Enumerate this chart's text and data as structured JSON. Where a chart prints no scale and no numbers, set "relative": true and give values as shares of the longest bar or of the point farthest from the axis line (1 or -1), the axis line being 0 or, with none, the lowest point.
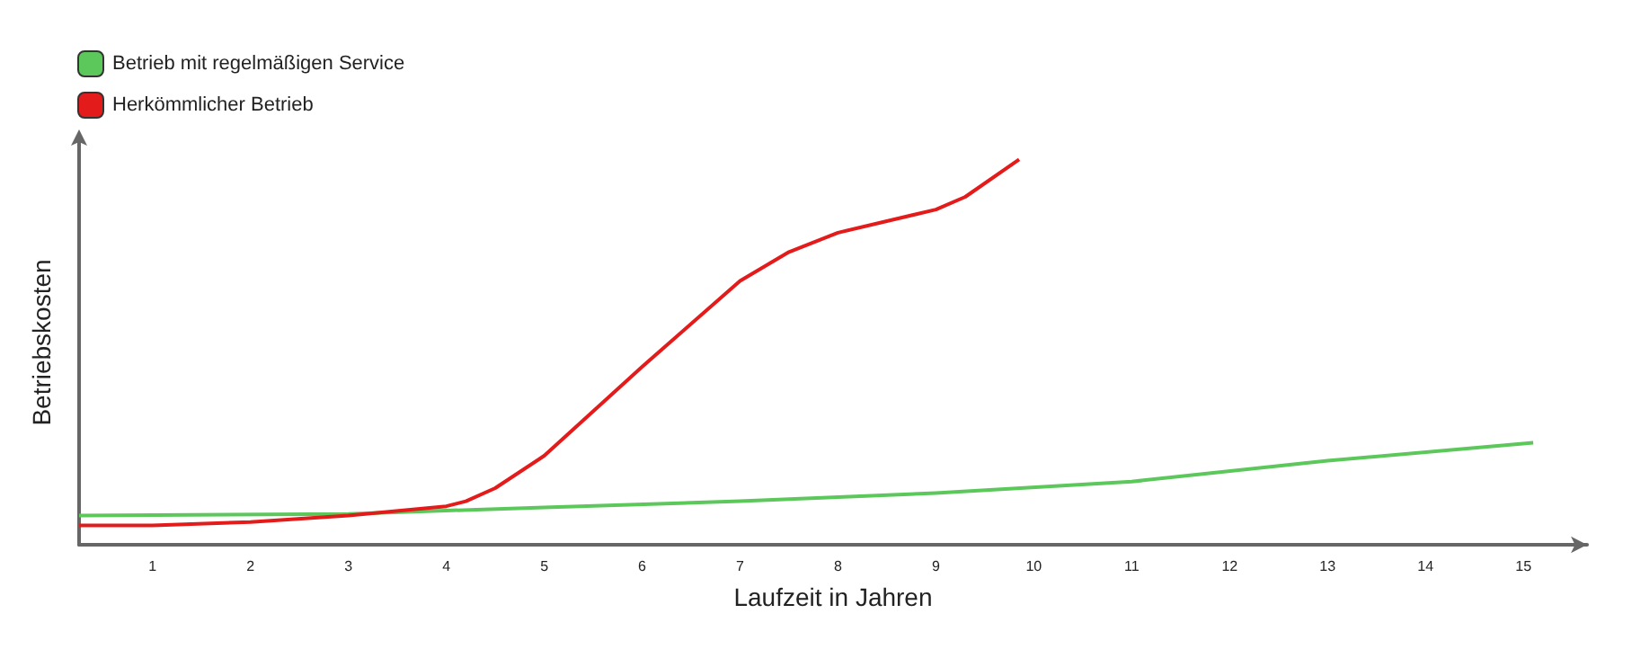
{
  "chart_data": {
    "type": "line",
    "relative": true,
    "xlabel": "Laufzeit in Jahren",
    "ylabel": "Betriebskosten",
    "xlim": [
      0.25,
      15.65
    ],
    "xticks": [
      1,
      2,
      3,
      4,
      5,
      6,
      7,
      8,
      9,
      10,
      11,
      12,
      13,
      14,
      15
    ],
    "tick_labels": "x",
    "grid": false,
    "legend": "top left",
    "marker": "none",
    "line_style": "solid",
    "series": [
      {
        "name": "Betrieb mit regelmäßigen Service",
        "color": "#5cc85c",
        "x": [
          0.25,
          3,
          5,
          7,
          9,
          11,
          13,
          15.1
        ],
        "values": [
          0.076,
          0.08,
          0.097,
          0.113,
          0.134,
          0.164,
          0.218,
          0.265
        ]
      },
      {
        "name": "Herkömmlicher Betrieb",
        "color": "#e31b1b",
        "x": [
          0.25,
          1,
          2,
          3,
          4,
          4.2,
          4.5,
          5,
          6,
          7,
          7.5,
          8,
          9,
          9.3,
          9.85
        ],
        "values": [
          0.05,
          0.05,
          0.059,
          0.076,
          0.1,
          0.113,
          0.147,
          0.231,
          0.462,
          0.685,
          0.76,
          0.81,
          0.87,
          0.903,
          1
        ]
      }
    ]
  }
}
